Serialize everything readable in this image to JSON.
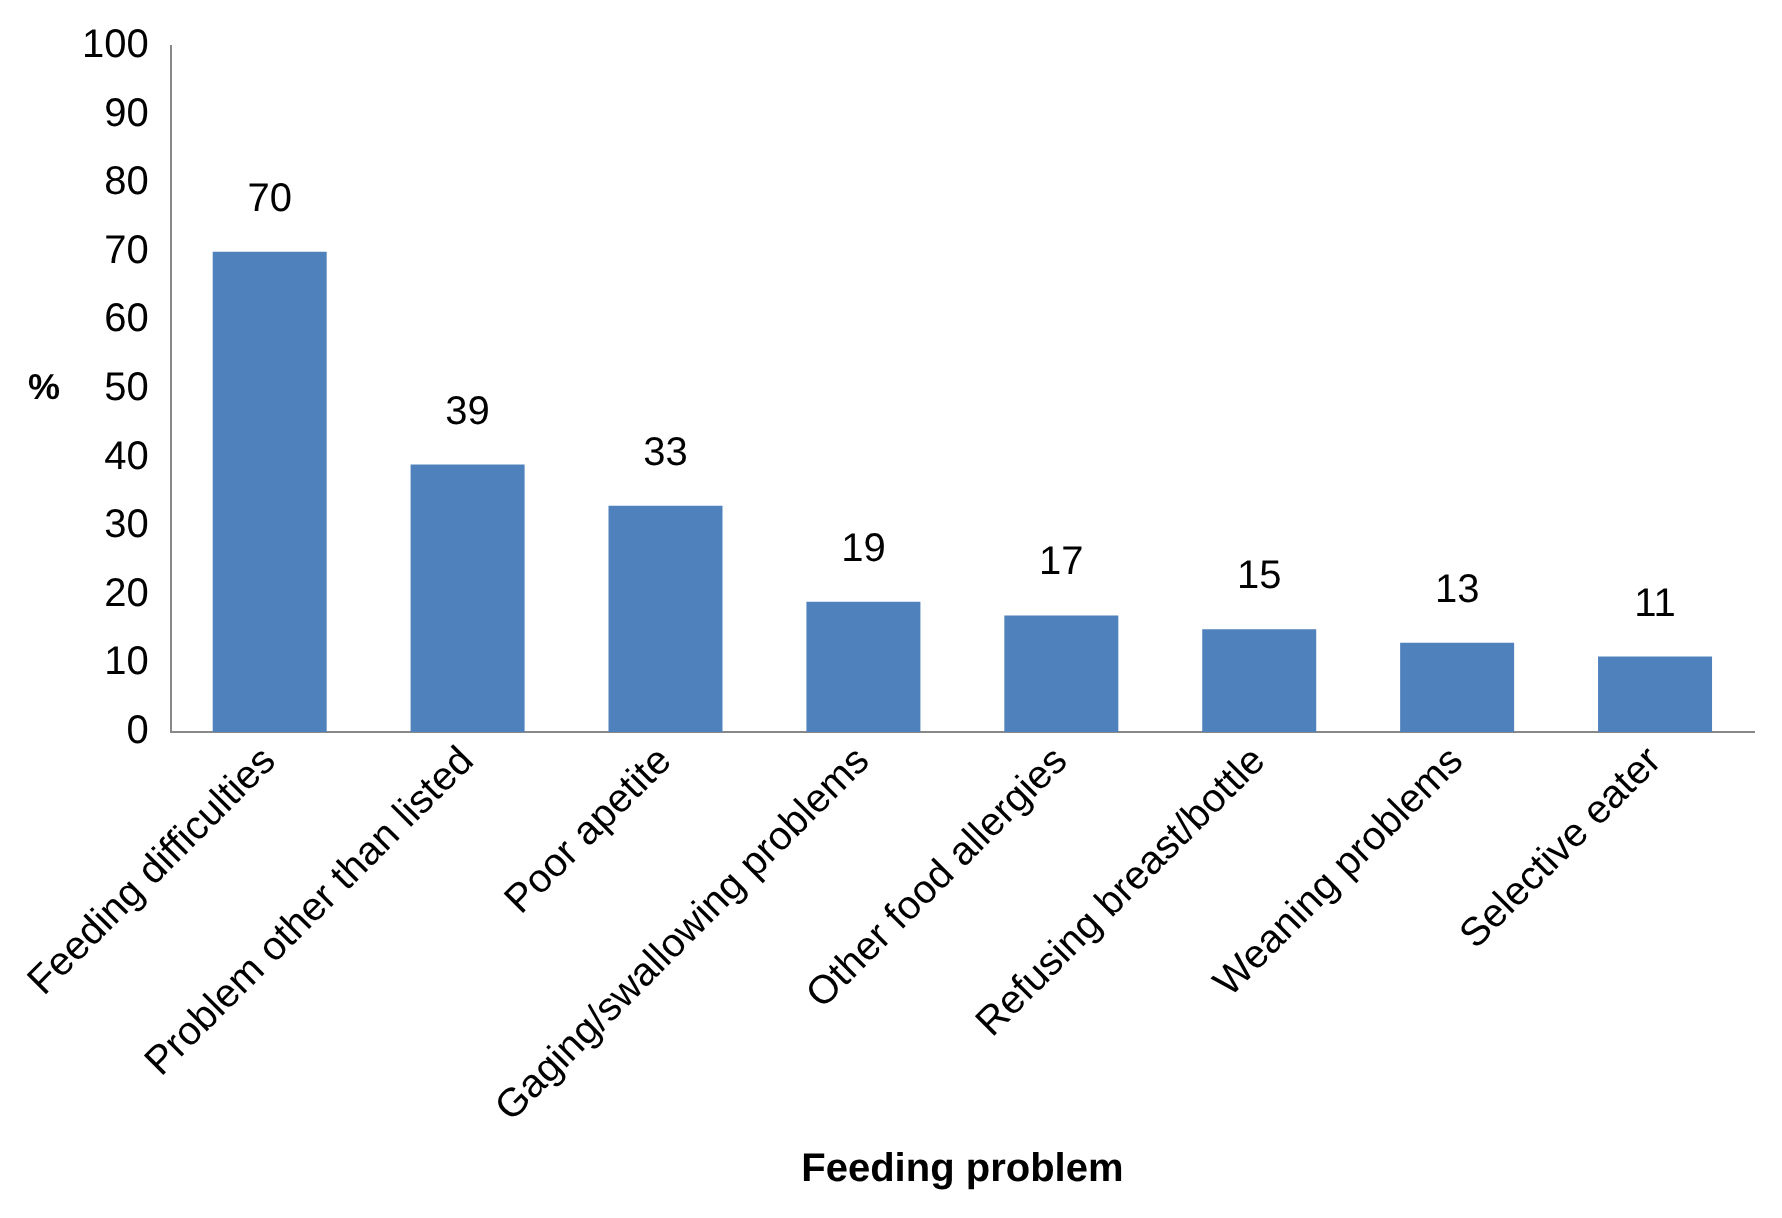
{
  "chart_data": {
    "type": "bar",
    "xlabel": "Feeding problem",
    "ylabel": "%",
    "categories": [
      "Feeding difficulties",
      "Problem other than listed",
      "Poor apetite",
      "Gaging/swallowing problems",
      "Other food allergies",
      "Refusing breast/bottle",
      "Weaning problems",
      "Selective eater"
    ],
    "values": [
      70,
      39,
      33,
      19,
      17,
      15,
      13,
      11
    ],
    "color": "#4f81bd",
    "ylim": [
      0,
      100
    ],
    "yticks": [
      0,
      10,
      20,
      30,
      40,
      50,
      60,
      70,
      80,
      90,
      100
    ],
    "grid": false,
    "legend": false,
    "data_labels": true
  }
}
